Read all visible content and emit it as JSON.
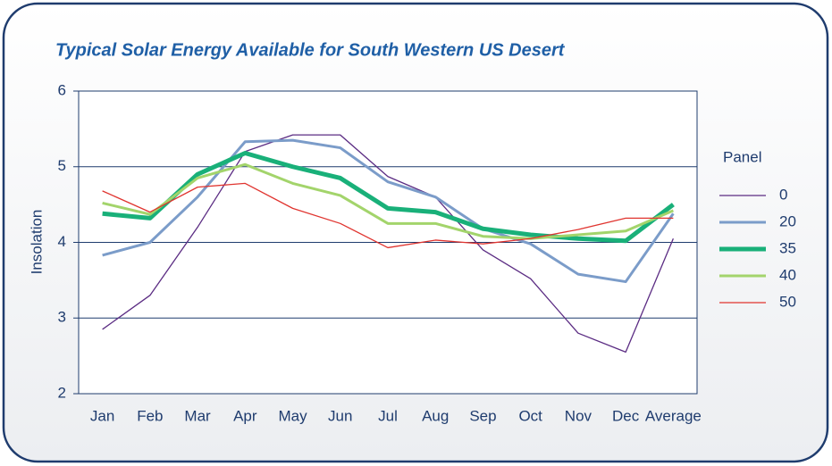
{
  "chart_data": {
    "type": "line",
    "title": "Typical Solar Energy Available for South Western US Desert",
    "y_label": "Insolation",
    "legend_title": "Panel",
    "legend": "right",
    "grid": true,
    "categories": [
      "Jan",
      "Feb",
      "Mar",
      "Apr",
      "May",
      "Jun",
      "Jul",
      "Aug",
      "Sep",
      "Oct",
      "Nov",
      "Dec",
      "Average"
    ],
    "ylim": [
      2,
      6
    ],
    "yticks": [
      2,
      3,
      4,
      5,
      6
    ],
    "series": [
      {
        "name": "0",
        "color": "#5b2c83",
        "values": [
          2.85,
          3.3,
          4.2,
          5.2,
          5.42,
          5.42,
          4.87,
          4.6,
          3.9,
          3.52,
          2.8,
          2.55,
          4.05
        ]
      },
      {
        "name": "20",
        "color": "#7b9cc9",
        "values": [
          3.83,
          4.0,
          4.6,
          5.33,
          5.35,
          5.25,
          4.8,
          4.6,
          4.18,
          3.98,
          3.58,
          3.48,
          4.38
        ]
      },
      {
        "name": "35",
        "color": "#19b079",
        "values": [
          4.38,
          4.32,
          4.9,
          5.18,
          5.0,
          4.85,
          4.45,
          4.4,
          4.18,
          4.1,
          4.05,
          4.02,
          4.5
        ]
      },
      {
        "name": "40",
        "color": "#a3d46b",
        "values": [
          4.52,
          4.37,
          4.85,
          5.03,
          4.78,
          4.62,
          4.25,
          4.25,
          4.08,
          4.05,
          4.1,
          4.15,
          4.42
        ]
      },
      {
        "name": "50",
        "color": "#e0342f",
        "values": [
          4.68,
          4.4,
          4.73,
          4.78,
          4.45,
          4.25,
          3.93,
          4.03,
          3.98,
          4.05,
          4.17,
          4.32,
          4.32
        ]
      }
    ]
  }
}
